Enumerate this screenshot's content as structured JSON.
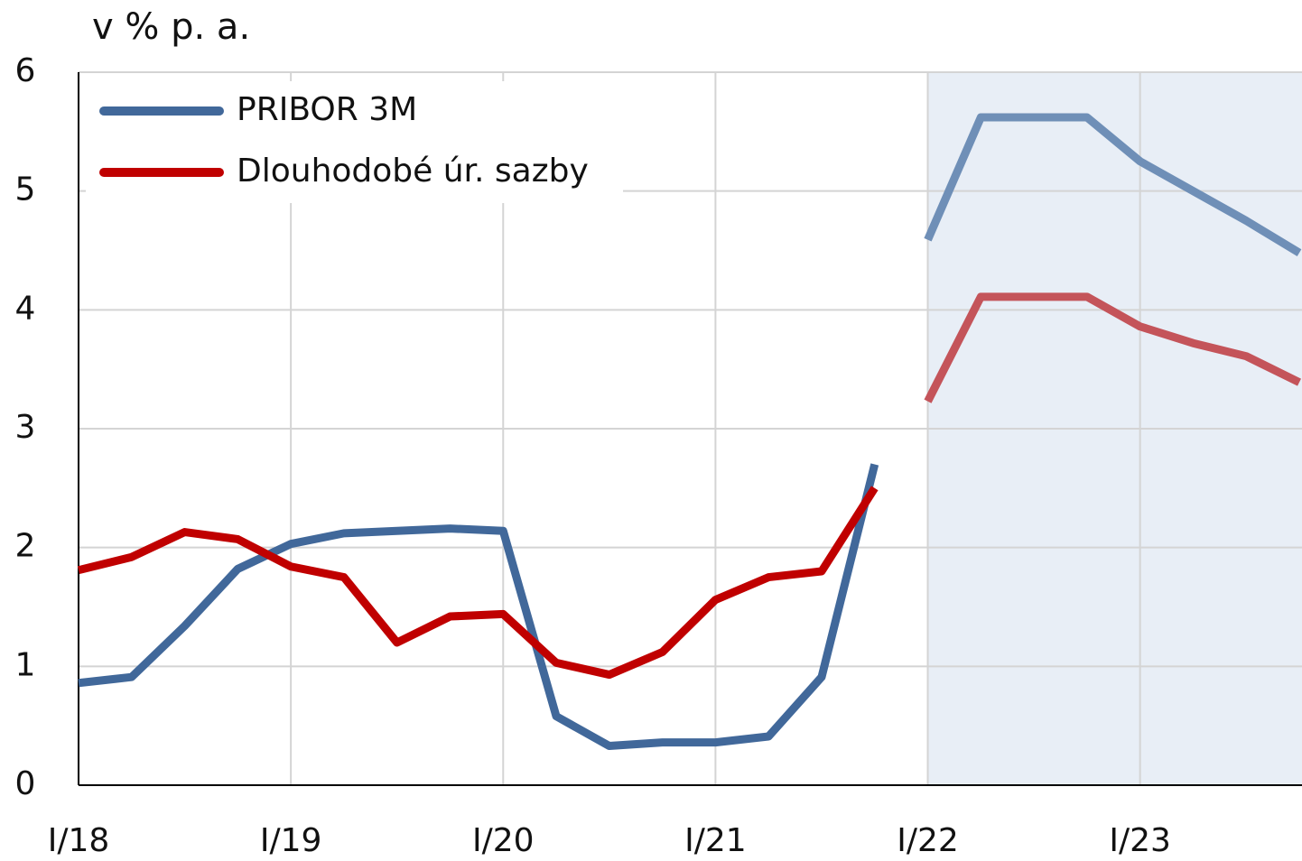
{
  "chart_data": {
    "type": "line",
    "y_label": "v % p. a.",
    "categories": [
      "I/18",
      null,
      null,
      null,
      "I/19",
      null,
      null,
      null,
      "I/20",
      null,
      null,
      null,
      "I/21",
      null,
      null,
      null,
      "I/22",
      null,
      null,
      null,
      "I/23",
      null,
      null,
      null
    ],
    "series": [
      {
        "name": "PRIBOR 3M",
        "color": "#41689a",
        "forecast_color": "#6f8fb7",
        "values": [
          0.86,
          0.91,
          1.34,
          1.82,
          2.03,
          2.12,
          2.14,
          2.16,
          2.14,
          0.58,
          0.33,
          0.36,
          0.36,
          0.41,
          0.91,
          2.7,
          4.59,
          5.62,
          5.62,
          5.62,
          5.25,
          5.0,
          4.75,
          4.48
        ]
      },
      {
        "name": "Dlouhodobé úr. sazby",
        "color": "#c00000",
        "forecast_color": "#c4545a",
        "values": [
          1.81,
          1.92,
          2.13,
          2.07,
          1.84,
          1.75,
          1.2,
          1.42,
          1.44,
          1.03,
          0.93,
          1.12,
          1.56,
          1.75,
          1.8,
          2.5,
          3.23,
          4.11,
          4.11,
          4.11,
          3.86,
          3.72,
          3.61,
          3.39
        ]
      }
    ],
    "ylim": [
      0,
      6
    ],
    "yticks": [
      0,
      1,
      2,
      3,
      4,
      5,
      6
    ],
    "grid": true,
    "shade_start": 16,
    "shade_color": "#e8eef6",
    "legend": "upper left"
  }
}
